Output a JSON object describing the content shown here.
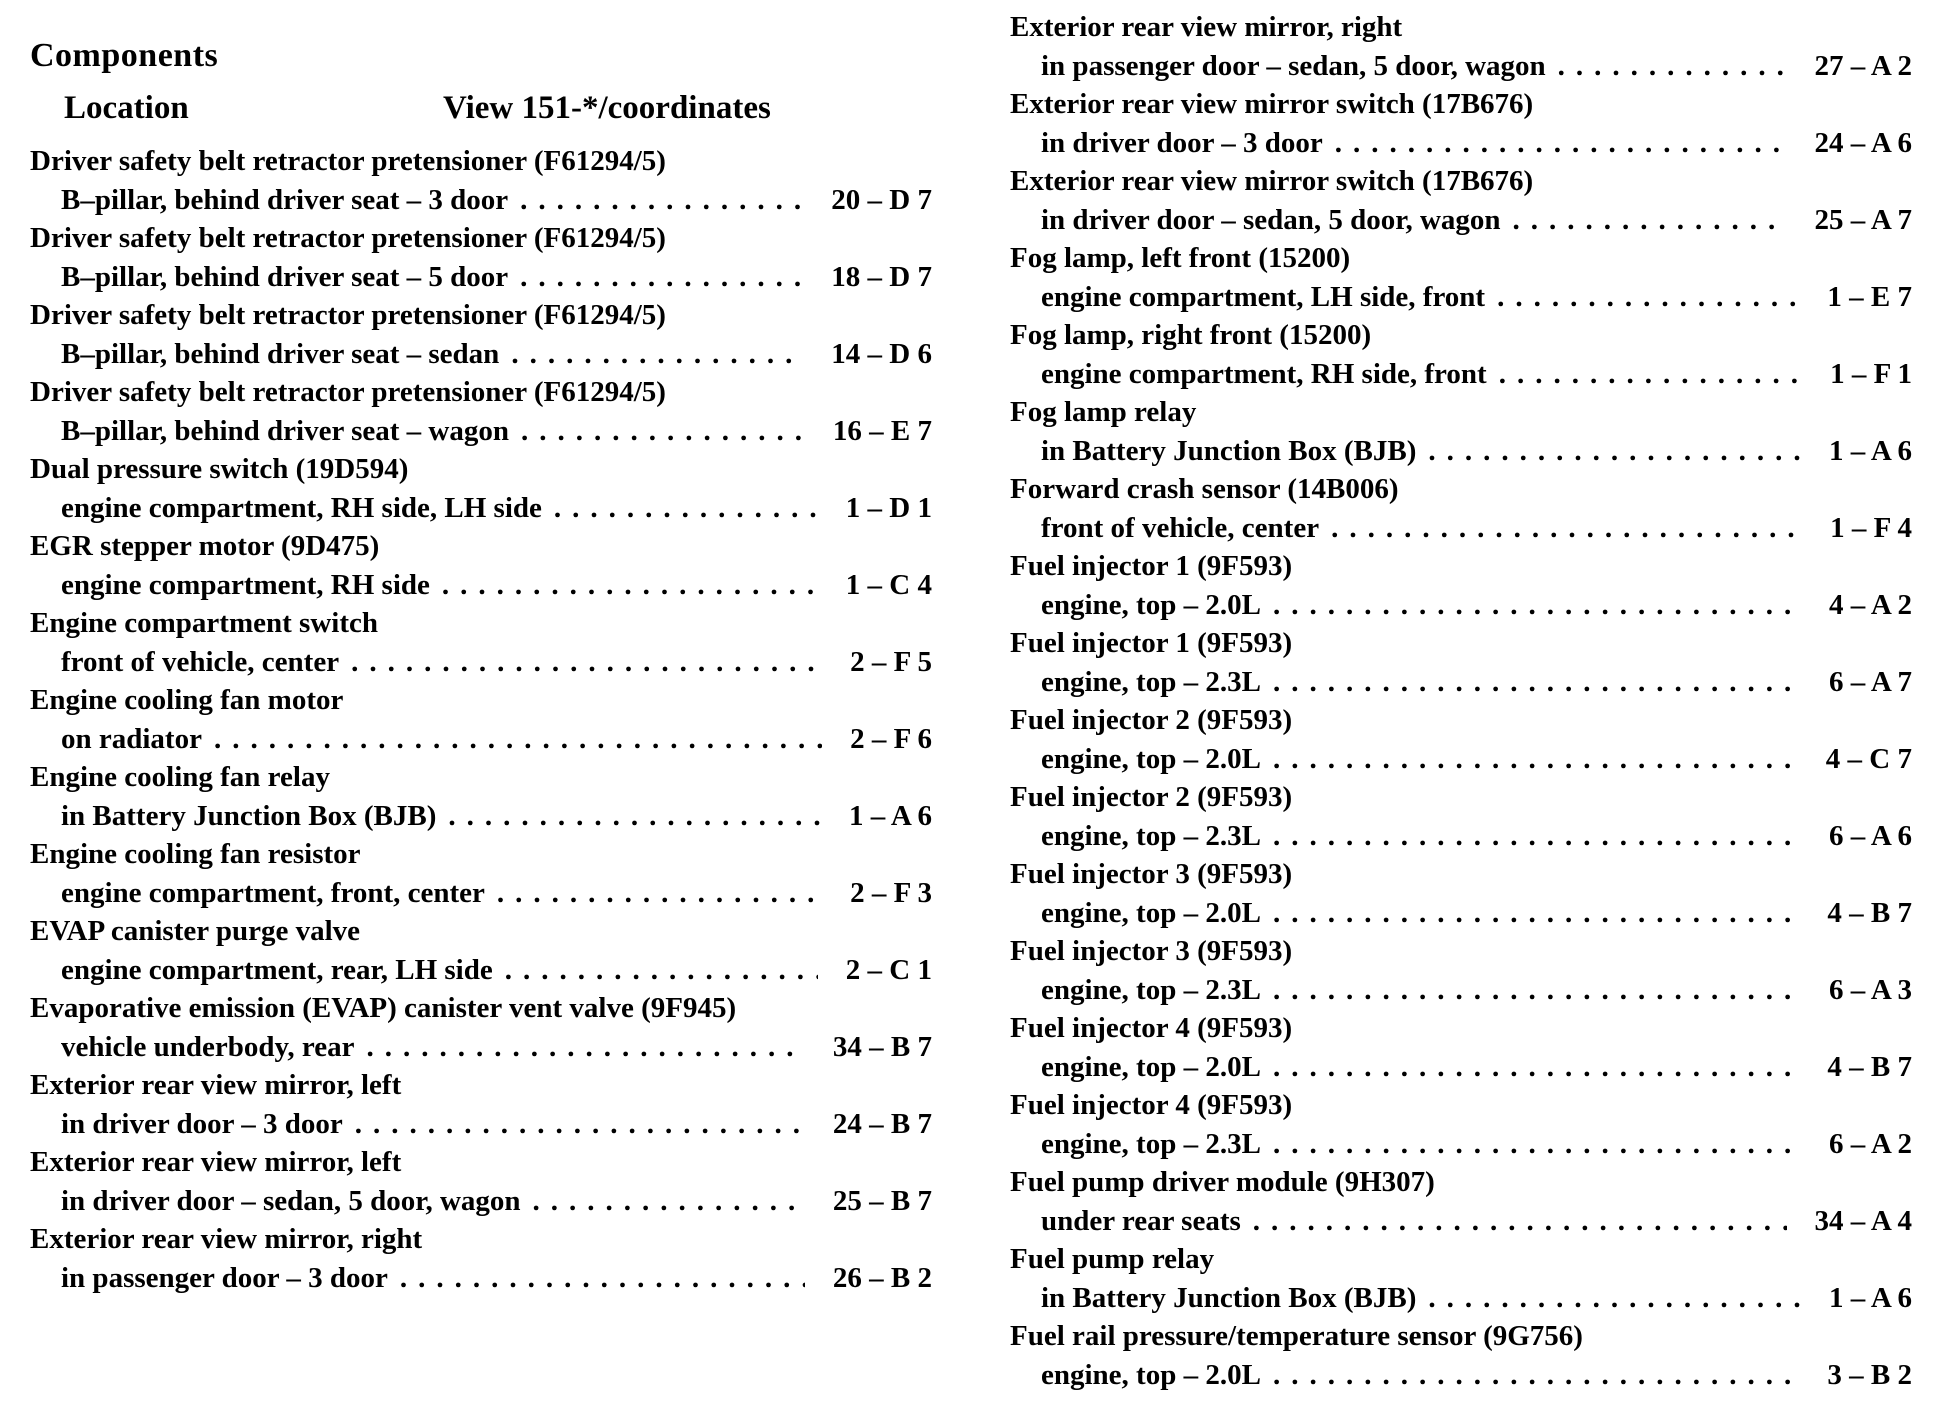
{
  "header": {
    "title": "Components",
    "location_label": "Location",
    "view_label": "View 151-*/coordinates"
  },
  "left_entries": [
    {
      "component": "Driver safety belt retractor pretensioner (F61294/5)",
      "location": "B–pillar, behind driver seat – 3 door",
      "coord": "20 – D 7"
    },
    {
      "component": "Driver safety belt retractor pretensioner (F61294/5)",
      "location": "B–pillar, behind driver seat – 5 door",
      "coord": "18 – D 7"
    },
    {
      "component": "Driver safety belt retractor pretensioner (F61294/5)",
      "location": "B–pillar, behind driver seat – sedan",
      "coord": "14 – D 6"
    },
    {
      "component": "Driver safety belt retractor pretensioner (F61294/5)",
      "location": "B–pillar, behind driver seat – wagon",
      "coord": "16 – E 7"
    },
    {
      "component": "Dual pressure switch (19D594)",
      "location": "engine compartment, RH side, LH side",
      "coord": "1 – D 1"
    },
    {
      "component": "EGR stepper motor (9D475)",
      "location": "engine compartment, RH side",
      "coord": "1 – C 4"
    },
    {
      "component": "Engine compartment switch",
      "location": "front of vehicle, center",
      "coord": "2 – F 5"
    },
    {
      "component": "Engine cooling fan motor",
      "location": "on radiator",
      "coord": "2 – F 6"
    },
    {
      "component": "Engine cooling fan relay",
      "location": "in Battery Junction Box (BJB)",
      "coord": "1 – A 6"
    },
    {
      "component": "Engine cooling fan resistor",
      "location": "engine compartment, front, center",
      "coord": "2 – F 3"
    },
    {
      "component": "EVAP canister purge valve",
      "location": "engine compartment, rear, LH side",
      "coord": "2 – C 1"
    },
    {
      "component": "Evaporative emission (EVAP) canister vent valve (9F945)",
      "location": "vehicle underbody, rear",
      "coord": "34 – B 7"
    },
    {
      "component": "Exterior rear view mirror, left",
      "location": "in driver door – 3 door",
      "coord": "24 – B 7"
    },
    {
      "component": "Exterior rear view mirror, left",
      "location": "in driver door – sedan, 5 door, wagon",
      "coord": "25 – B 7"
    },
    {
      "component": "Exterior rear view mirror, right",
      "location": "in passenger door – 3 door",
      "coord": "26 – B 2"
    }
  ],
  "right_entries": [
    {
      "component": "Exterior rear view mirror, right",
      "location": "in passenger door – sedan, 5 door, wagon",
      "coord": "27 – A 2"
    },
    {
      "component": "Exterior rear view mirror switch (17B676)",
      "location": "in driver door – 3 door",
      "coord": "24 – A 6"
    },
    {
      "component": "Exterior rear view mirror switch (17B676)",
      "location": "in driver door – sedan, 5 door, wagon",
      "coord": "25 – A 7"
    },
    {
      "component": "Fog lamp, left front (15200)",
      "location": "engine compartment, LH side, front",
      "coord": "1 – E 7"
    },
    {
      "component": "Fog lamp, right front (15200)",
      "location": "engine compartment, RH side, front",
      "coord": "1 – F 1"
    },
    {
      "component": "Fog lamp relay",
      "location": "in Battery Junction Box (BJB)",
      "coord": "1 – A 6"
    },
    {
      "component": "Forward crash sensor (14B006)",
      "location": "front of vehicle, center",
      "coord": "1 – F 4"
    },
    {
      "component": "Fuel injector 1 (9F593)",
      "location": "engine, top – 2.0L",
      "coord": "4 – A 2"
    },
    {
      "component": "Fuel injector 1 (9F593)",
      "location": "engine, top – 2.3L",
      "coord": "6 – A 7"
    },
    {
      "component": "Fuel injector 2 (9F593)",
      "location": "engine, top – 2.0L",
      "coord": "4 – C 7"
    },
    {
      "component": "Fuel injector 2 (9F593)",
      "location": "engine, top – 2.3L",
      "coord": "6 – A 6"
    },
    {
      "component": "Fuel injector 3 (9F593)",
      "location": "engine, top – 2.0L",
      "coord": "4 – B 7"
    },
    {
      "component": "Fuel injector 3 (9F593)",
      "location": "engine, top – 2.3L",
      "coord": "6 – A 3"
    },
    {
      "component": "Fuel injector 4 (9F593)",
      "location": "engine, top – 2.0L",
      "coord": "4 – B 7"
    },
    {
      "component": "Fuel injector 4 (9F593)",
      "location": "engine, top – 2.3L",
      "coord": "6 – A 2"
    },
    {
      "component": "Fuel pump driver module (9H307)",
      "location": "under rear seats",
      "coord": "34 – A 4"
    },
    {
      "component": "Fuel pump relay",
      "location": "in Battery Junction Box (BJB)",
      "coord": "1 – A 6"
    },
    {
      "component": "Fuel rail pressure/temperature sensor (9G756)",
      "location": "engine, top – 2.0L",
      "coord": "3 – B 2"
    }
  ]
}
